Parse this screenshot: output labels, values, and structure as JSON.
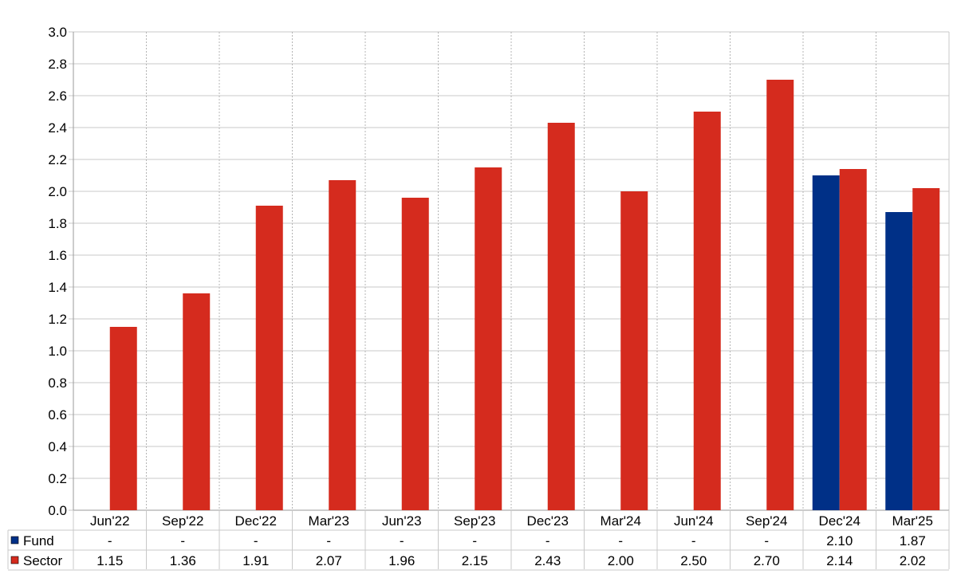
{
  "chart_data": {
    "type": "bar",
    "categories": [
      "Jun'22",
      "Sep'22",
      "Dec'22",
      "Mar'23",
      "Jun'23",
      "Sep'23",
      "Dec'23",
      "Mar'24",
      "Jun'24",
      "Sep'24",
      "Dec'24",
      "Mar'25"
    ],
    "series": [
      {
        "name": "Fund",
        "color": "#003087",
        "values": [
          null,
          null,
          null,
          null,
          null,
          null,
          null,
          null,
          null,
          null,
          2.1,
          1.87
        ],
        "table_values": [
          "-",
          "-",
          "-",
          "-",
          "-",
          "-",
          "-",
          "-",
          "-",
          "-",
          "2.10",
          "1.87"
        ]
      },
      {
        "name": "Sector",
        "color": "#d52b1e",
        "values": [
          1.15,
          1.36,
          1.91,
          2.07,
          1.96,
          2.15,
          2.43,
          2.0,
          2.5,
          2.7,
          2.14,
          2.02
        ],
        "table_values": [
          "1.15",
          "1.36",
          "1.91",
          "2.07",
          "1.96",
          "2.15",
          "2.43",
          "2.00",
          "2.50",
          "2.70",
          "2.14",
          "2.02"
        ]
      }
    ],
    "ylim": [
      0,
      3.0
    ],
    "yticks": [
      "0.0",
      "0.2",
      "0.4",
      "0.6",
      "0.8",
      "1.0",
      "1.2",
      "1.4",
      "1.6",
      "1.8",
      "2.0",
      "2.2",
      "2.4",
      "2.6",
      "2.8",
      "3.0"
    ],
    "grid": true,
    "legend": "data-table-bottom",
    "title": "",
    "xlabel": "",
    "ylabel": ""
  }
}
